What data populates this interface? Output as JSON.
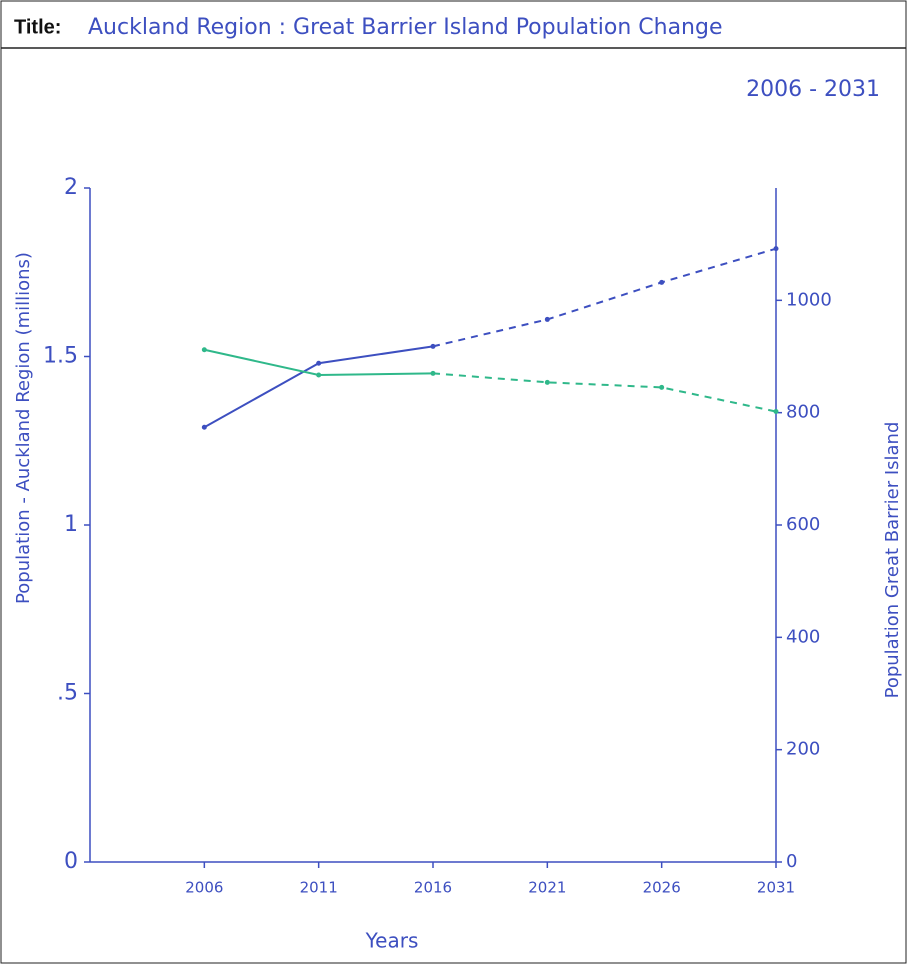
{
  "header_label": "Title:",
  "chart_data": {
    "type": "line",
    "title": "Auckland Region : Great Barrier Island Population Change",
    "subtitle": "2006 - 2031",
    "x_label": "Years",
    "y_label": "Population - Auckland Region (millions)",
    "y2_label": "Population Great Barrier Island",
    "x": [
      2006,
      2011,
      2016,
      2021,
      2026,
      2031
    ],
    "xlim": [
      2001,
      2031
    ],
    "xticks": [
      2006,
      2011,
      2016,
      2021,
      2026,
      2031
    ],
    "ylim": [
      0,
      2
    ],
    "yticks": [
      0,
      {
        "value": 0.5,
        "label": ".5"
      },
      1,
      1.5,
      2
    ],
    "y2lim": [
      0,
      1200
    ],
    "y2ticks": [
      0,
      200,
      400,
      600,
      800,
      1000
    ],
    "grid": false,
    "projected_from": 2016,
    "series": [
      {
        "color": "#3d4fc0",
        "axis": "y",
        "values": [
          1.29,
          1.48,
          1.53,
          1.61,
          1.72,
          1.82
        ]
      },
      {
        "color": "#2fb88a",
        "axis": "y2",
        "values": [
          912,
          867,
          870,
          854,
          845,
          802
        ]
      }
    ]
  }
}
